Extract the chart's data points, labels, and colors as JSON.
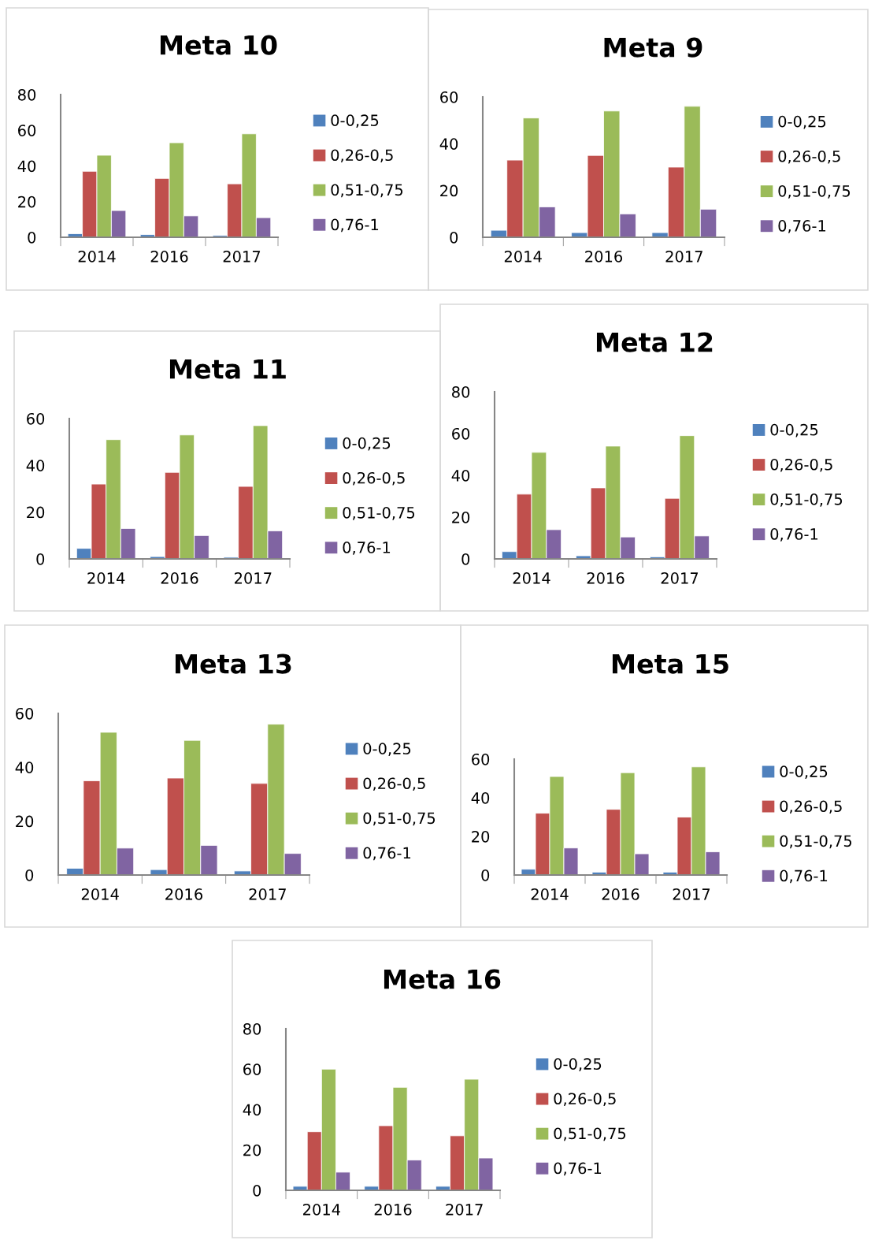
{
  "chart_data": [
    {
      "type": "bar",
      "title": "Meta 10",
      "categories": [
        "2014",
        "2016",
        "2017"
      ],
      "ylim": [
        0,
        80
      ],
      "yticks": [
        0,
        20,
        40,
        60,
        80
      ],
      "legend": "right",
      "series": [
        {
          "name": "0-0,25",
          "color": "#4f81bd",
          "values": [
            2,
            1.5,
            1
          ]
        },
        {
          "name": "0,26-0,5",
          "color": "#c0504d",
          "values": [
            37,
            33,
            30
          ]
        },
        {
          "name": "0,51-0,75",
          "color": "#9bbb59",
          "values": [
            46,
            53,
            58
          ]
        },
        {
          "name": "0,76-1",
          "color": "#8064a2",
          "values": [
            15,
            12,
            11
          ]
        }
      ]
    },
    {
      "type": "bar",
      "title": "Meta 9",
      "categories": [
        "2014",
        "2016",
        "2017"
      ],
      "ylim": [
        0,
        60
      ],
      "yticks": [
        0,
        20,
        40,
        60
      ],
      "legend": "right",
      "series": [
        {
          "name": "0-0,25",
          "color": "#4f81bd",
          "values": [
            3,
            2,
            2
          ]
        },
        {
          "name": "0,26-0,5",
          "color": "#c0504d",
          "values": [
            33,
            35,
            30
          ]
        },
        {
          "name": "0,51-0,75",
          "color": "#9bbb59",
          "values": [
            51,
            54,
            56
          ]
        },
        {
          "name": "0,76-1",
          "color": "#8064a2",
          "values": [
            13,
            10,
            12
          ]
        }
      ]
    },
    {
      "type": "bar",
      "title": "Meta 11",
      "categories": [
        "2014",
        "2016",
        "2017"
      ],
      "ylim": [
        0,
        60
      ],
      "yticks": [
        0,
        20,
        40,
        60
      ],
      "legend": "right",
      "series": [
        {
          "name": "0-0,25",
          "color": "#4f81bd",
          "values": [
            4.5,
            1,
            0.7
          ]
        },
        {
          "name": "0,26-0,5",
          "color": "#c0504d",
          "values": [
            32,
            37,
            31
          ]
        },
        {
          "name": "0,51-0,75",
          "color": "#9bbb59",
          "values": [
            51,
            53,
            57
          ]
        },
        {
          "name": "0,76-1",
          "color": "#8064a2",
          "values": [
            13,
            10,
            12
          ]
        }
      ]
    },
    {
      "type": "bar",
      "title": "Meta 12",
      "categories": [
        "2014",
        "2016",
        "2017"
      ],
      "ylim": [
        0,
        80
      ],
      "yticks": [
        0,
        20,
        40,
        60,
        80
      ],
      "legend": "right",
      "series": [
        {
          "name": "0-0,25",
          "color": "#4f81bd",
          "values": [
            3.5,
            1.5,
            1
          ]
        },
        {
          "name": "0,26-0,5",
          "color": "#c0504d",
          "values": [
            31,
            34,
            29
          ]
        },
        {
          "name": "0,51-0,75",
          "color": "#9bbb59",
          "values": [
            51,
            54,
            59
          ]
        },
        {
          "name": "0,76-1",
          "color": "#8064a2",
          "values": [
            14,
            10.5,
            11
          ]
        }
      ]
    },
    {
      "type": "bar",
      "title": "Meta 13",
      "categories": [
        "2014",
        "2016",
        "2017"
      ],
      "ylim": [
        0,
        60
      ],
      "yticks": [
        0,
        20,
        40,
        60
      ],
      "legend": "right",
      "series": [
        {
          "name": "0-0,25",
          "color": "#4f81bd",
          "values": [
            2.5,
            2,
            1.5
          ]
        },
        {
          "name": "0,26-0,5",
          "color": "#c0504d",
          "values": [
            35,
            36,
            34
          ]
        },
        {
          "name": "0,51-0,75",
          "color": "#9bbb59",
          "values": [
            53,
            50,
            56
          ]
        },
        {
          "name": "0,76-1",
          "color": "#8064a2",
          "values": [
            10,
            11,
            8
          ]
        }
      ]
    },
    {
      "type": "bar",
      "title": "Meta 15",
      "categories": [
        "2014",
        "2016",
        "2017"
      ],
      "ylim": [
        0,
        60
      ],
      "yticks": [
        0,
        20,
        40,
        60
      ],
      "legend": "right",
      "series": [
        {
          "name": "0-0,25",
          "color": "#4f81bd",
          "values": [
            3,
            1.5,
            1.5
          ]
        },
        {
          "name": "0,26-0,5",
          "color": "#c0504d",
          "values": [
            32,
            34,
            30
          ]
        },
        {
          "name": "0,51-0,75",
          "color": "#9bbb59",
          "values": [
            51,
            53,
            56
          ]
        },
        {
          "name": "0,76-1",
          "color": "#8064a2",
          "values": [
            14,
            11,
            12
          ]
        }
      ]
    },
    {
      "type": "bar",
      "title": "Meta 16",
      "categories": [
        "2014",
        "2016",
        "2017"
      ],
      "ylim": [
        0,
        80
      ],
      "yticks": [
        0,
        20,
        40,
        60,
        80
      ],
      "legend": "right",
      "series": [
        {
          "name": "0-0,25",
          "color": "#4f81bd",
          "values": [
            2,
            2,
            2
          ]
        },
        {
          "name": "0,26-0,5",
          "color": "#c0504d",
          "values": [
            29,
            32,
            27
          ]
        },
        {
          "name": "0,51-0,75",
          "color": "#9bbb59",
          "values": [
            60,
            51,
            55
          ]
        },
        {
          "name": "0,76-1",
          "color": "#8064a2",
          "values": [
            9,
            15,
            16
          ]
        }
      ]
    }
  ]
}
